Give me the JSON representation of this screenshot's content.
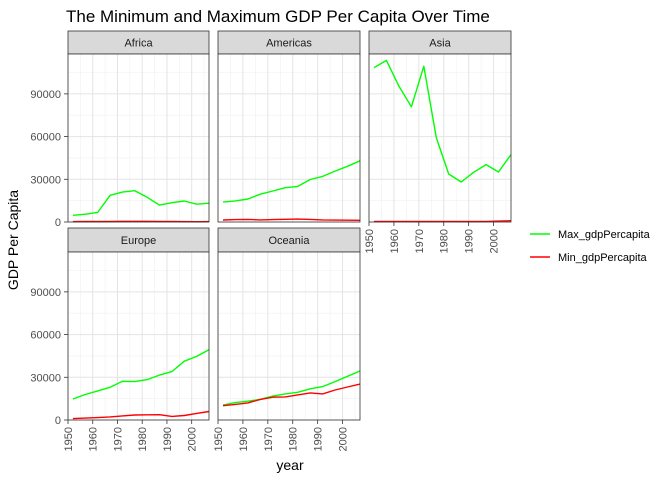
{
  "chart_data": {
    "type": "line",
    "title": "The Minimum and Maximum GDP Per Capita Over Time",
    "xlabel": "year",
    "ylabel": "GDP Per Capita",
    "xlim": [
      1950,
      2007
    ],
    "ylim": [
      0,
      118000
    ],
    "x_ticks": [
      1950,
      1960,
      1970,
      1980,
      1990,
      2000
    ],
    "y_ticks": [
      0,
      30000,
      60000,
      90000
    ],
    "y_tick_labels": [
      "0",
      "30000",
      "60000",
      "90000"
    ],
    "grid": true,
    "legend_position": "right",
    "x": [
      1952,
      1957,
      1962,
      1967,
      1972,
      1977,
      1982,
      1987,
      1992,
      1997,
      2002,
      2007
    ],
    "series_colors": {
      "Max_gdpPercapita": "#00FF00",
      "Min_gdpPercapita": "#FF0000"
    },
    "legend": [
      {
        "name": "Max_gdpPercapita",
        "color": "#00FF00"
      },
      {
        "name": "Min_gdpPercapita",
        "color": "#FF0000"
      }
    ],
    "facets": [
      {
        "name": "Africa",
        "series": [
          {
            "name": "Max_gdpPercapita",
            "values": [
              4725,
              5487,
              6757,
              18773,
              21011,
              21951,
              17364,
              11864,
              13522,
              14723,
              12522,
              13206
            ]
          },
          {
            "name": "Min_gdpPercapita",
            "values": [
              299,
              336,
              355,
              413,
              464,
              502,
              462,
              390,
              411,
              312,
              241,
              278
            ]
          }
        ]
      },
      {
        "name": "Americas",
        "series": [
          {
            "name": "Max_gdpPercapita",
            "values": [
              13990,
              14847,
              16173,
              19530,
              21806,
              24073,
              25010,
              29884,
              32004,
              35767,
              39097,
              42952
            ]
          },
          {
            "name": "Min_gdpPercapita",
            "values": [
              1398,
              1707,
              1797,
              1452,
              1654,
              1875,
              2011,
              1823,
              1456,
              1342,
              1270,
              1202
            ]
          }
        ]
      },
      {
        "name": "Asia",
        "series": [
          {
            "name": "Max_gdpPercapita",
            "values": [
              108382,
              113523,
              95458,
              80895,
              109348,
              59265,
              33693,
              28118,
              34933,
              40301,
              35110,
              47307
            ]
          },
          {
            "name": "Min_gdpPercapita",
            "values": [
              331,
              350,
              388,
              349,
              357,
              371,
              424,
              385,
              347,
              415,
              611,
              944
            ]
          }
        ]
      },
      {
        "name": "Europe",
        "series": [
          {
            "name": "Max_gdpPercapita",
            "values": [
              14734,
              17909,
              20431,
              22966,
              27195,
              26982,
              28398,
              31541,
              33965,
              41283,
              44684,
              49357
            ]
          },
          {
            "name": "Min_gdpPercapita",
            "values": [
              974,
              1354,
              1710,
              2172,
              2860,
              3528,
              3631,
              3739,
              2497,
              3193,
              4604,
              5937
            ]
          }
        ]
      },
      {
        "name": "Oceania",
        "series": [
          {
            "name": "Max_gdpPercapita",
            "values": [
              10557,
              12247,
              13175,
              14526,
              16788,
              18334,
              19477,
              21889,
              23425,
              26998,
              30688,
              34435
            ]
          },
          {
            "name": "Min_gdpPercapita",
            "values": [
              10040,
              10950,
              12022,
              14464,
              16046,
              16234,
              17632,
              19007,
              18363,
              21050,
              23190,
              25185
            ]
          }
        ]
      }
    ]
  }
}
